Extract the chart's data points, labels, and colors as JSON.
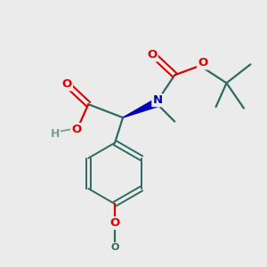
{
  "bg": "#ebebeb",
  "bond_color": "#2d6b5e",
  "O_color": "#dd0000",
  "N_color": "#0000bb",
  "H_color": "#7a9a94",
  "C_color": "#2d6b5e",
  "lw": 1.6,
  "fs": 9.5,
  "fig_w": 3.0,
  "fig_h": 3.0,
  "dpi": 100,
  "xlim": [
    0,
    10
  ],
  "ylim": [
    0,
    10
  ]
}
